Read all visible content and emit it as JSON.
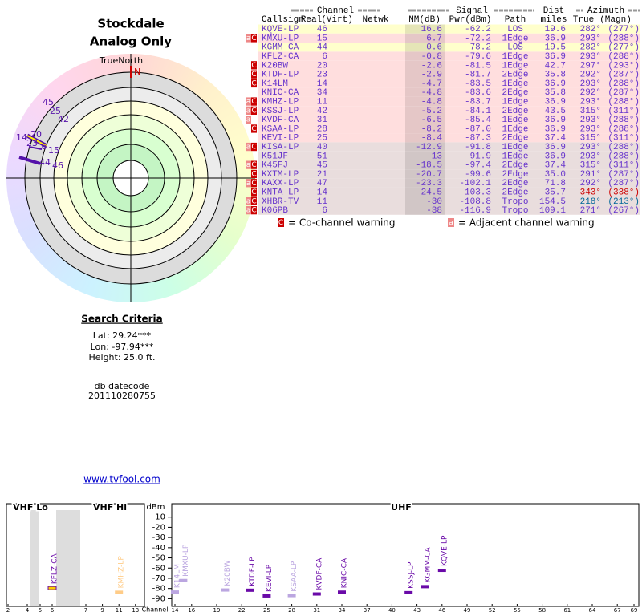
{
  "location": {
    "title": "Stockdale",
    "subtitle": "Analog Only"
  },
  "polar": {
    "north_label": "TrueNorth",
    "n": "N",
    "labels": [
      45,
      25,
      42,
      14,
      20,
      23,
      6,
      15,
      44,
      46
    ]
  },
  "table": {
    "groups": {
      "channel": "Channel",
      "signal": "Signal",
      "dist": "Dist",
      "azimuth": "Azimuth"
    },
    "columns": {
      "callsign": "Callsign",
      "real": "Real",
      "virt": "(Virt)",
      "netwk": "Netwk",
      "nm": "NM(dB)",
      "pwr": "Pwr(dBm)",
      "path": "Path",
      "miles": "miles",
      "true": "True",
      "magn": "(Magn)"
    },
    "rows": [
      {
        "callsign": "KQVE-LP",
        "real": 46,
        "nm": 16.6,
        "pwr": -62.2,
        "path": "LOS",
        "dist": 19.6,
        "true": "282°",
        "magn": "(277°)"
      },
      {
        "warn": [
          "a",
          "C"
        ],
        "callsign": "KMXU-LP",
        "real": 15,
        "nm": 6.7,
        "pwr": -72.2,
        "path": "1Edge",
        "dist": 36.9,
        "true": "293°",
        "magn": "(288°)"
      },
      {
        "callsign": "KGMM-CA",
        "real": 44,
        "nm": 0.6,
        "pwr": -78.2,
        "path": "LOS",
        "dist": 19.5,
        "true": "282°",
        "magn": "(277°)"
      },
      {
        "callsign": "KFLZ-CA",
        "real": 6,
        "nm": -0.8,
        "pwr": -79.6,
        "path": "1Edge",
        "dist": 36.9,
        "true": "293°",
        "magn": "(288°)"
      },
      {
        "warn": [
          "C"
        ],
        "callsign": "K20BW",
        "real": 20,
        "nm": -2.6,
        "pwr": -81.5,
        "path": "1Edge",
        "dist": 42.7,
        "true": "297°",
        "magn": "(293°)"
      },
      {
        "warn": [
          "C"
        ],
        "callsign": "KTDF-LP",
        "real": 23,
        "nm": -2.9,
        "pwr": -81.7,
        "path": "2Edge",
        "dist": 35.8,
        "true": "292°",
        "magn": "(287°)"
      },
      {
        "warn": [
          "C"
        ],
        "callsign": "K14LM",
        "real": 14,
        "nm": -4.7,
        "pwr": -83.5,
        "path": "1Edge",
        "dist": 36.9,
        "true": "293°",
        "magn": "(288°)"
      },
      {
        "callsign": "KNIC-CA",
        "real": 34,
        "nm": -4.8,
        "pwr": -83.6,
        "path": "2Edge",
        "dist": 35.8,
        "true": "292°",
        "magn": "(287°)"
      },
      {
        "warn": [
          "a",
          "C"
        ],
        "callsign": "KMHZ-LP",
        "real": 11,
        "nm": -4.8,
        "pwr": -83.7,
        "path": "1Edge",
        "dist": 36.9,
        "true": "293°",
        "magn": "(288°)"
      },
      {
        "warn": [
          "a",
          "C"
        ],
        "callsign": "KSSJ-LP",
        "real": 42,
        "nm": -5.2,
        "pwr": -84.1,
        "path": "2Edge",
        "dist": 43.5,
        "true": "315°",
        "magn": "(311°)"
      },
      {
        "warn": [
          "a"
        ],
        "callsign": "KVDF-CA",
        "real": 31,
        "nm": -6.5,
        "pwr": -85.4,
        "path": "1Edge",
        "dist": 36.9,
        "true": "293°",
        "magn": "(288°)"
      },
      {
        "warn": [
          "C"
        ],
        "callsign": "KSAA-LP",
        "real": 28,
        "nm": -8.2,
        "pwr": {
          "value": -87,
          "label": "-87.0"
        },
        "path": "1Edge",
        "dist": 36.9,
        "true": "293°",
        "magn": "(288°)"
      },
      {
        "callsign": "KEVI-LP",
        "real": 25,
        "nm": -8.4,
        "pwr": -87.3,
        "path": "2Edge",
        "dist": 37.4,
        "true": "315°",
        "magn": "(311°)"
      },
      {
        "warn": [
          "a",
          "C"
        ],
        "callsign": "KISA-LP",
        "real": 40,
        "nm": -12.9,
        "pwr": -91.8,
        "path": "1Edge",
        "dist": 36.9,
        "true": "293°",
        "magn": "(288°)"
      },
      {
        "callsign": "K51JF",
        "real": 51,
        "nm": -13,
        "pwr": -91.9,
        "path": "1Edge",
        "dist": 36.9,
        "true": "293°",
        "magn": "(288°)"
      },
      {
        "warn": [
          "a",
          "C"
        ],
        "callsign": "K45FJ",
        "real": 45,
        "nm": -18.5,
        "pwr": -97.4,
        "path": "2Edge",
        "dist": 37.4,
        "true": "315°",
        "magn": "(311°)"
      },
      {
        "warn": [
          "C"
        ],
        "callsign": "KXTM-LP",
        "real": 21,
        "nm": -20.7,
        "pwr": -99.6,
        "path": "2Edge",
        "dist": {
          "value": 35,
          "label": "35.0"
        },
        "true": "291°",
        "magn": "(287°)"
      },
      {
        "warn": [
          "a",
          "C"
        ],
        "callsign": "KAXX-LP",
        "real": 47,
        "nm": -23.3,
        "pwr": -102.1,
        "path": "2Edge",
        "dist": 71.8,
        "true": "292°",
        "magn": "(287°)"
      },
      {
        "warn": [
          "C"
        ],
        "callsign": "KNTA-LP",
        "real": 14,
        "nm": -24.5,
        "pwr": -103.3,
        "path": "2Edge",
        "dist": 35.7,
        "true": "343°",
        "magn": "(338°)",
        "az_color": "#cc0000"
      },
      {
        "warn": [
          "a",
          "C"
        ],
        "callsign": "XHBR-TV",
        "real": 11,
        "nm": -30,
        "pwr": -108.8,
        "path": "Tropo",
        "dist": 154.5,
        "true": "218°",
        "magn": "(213°)",
        "az_color": "#006699"
      },
      {
        "warn": [
          "a",
          "C"
        ],
        "callsign": "K06PB",
        "real": 6,
        "nm": -38,
        "pwr": -116.9,
        "path": "Tropo",
        "dist": 109.1,
        "true": "271°",
        "magn": "(267°)"
      }
    ]
  },
  "legend": [
    {
      "icon": "C",
      "text": "= Co-channel warning"
    },
    {
      "icon": "a",
      "text": "= Adjacent channel warning"
    }
  ],
  "search": {
    "title": "Search Criteria",
    "lat": "Lat: 29.24***",
    "lon": "Lon: -97.94***",
    "height": "Height: 25.0 ft."
  },
  "datecode": {
    "label": "db datecode",
    "value": "201110280755"
  },
  "link": "www.tvfool.com",
  "spectrum": {
    "bands": [
      "VHF Lo",
      "VHF Hi",
      "UHF"
    ],
    "y_label": "dBm",
    "x_label": "Channel",
    "ylim": [
      -96,
      0
    ],
    "yticks": [
      -10,
      -20,
      -30,
      -40,
      -50,
      -60,
      -70,
      -80,
      -90
    ],
    "xticks": [
      2,
      4,
      5,
      6,
      7,
      9,
      11,
      13,
      14,
      16,
      19,
      22,
      25,
      28,
      31,
      34,
      37,
      40,
      43,
      46,
      49,
      52,
      55,
      58,
      61,
      64,
      67,
      69
    ],
    "stations": [
      {
        "name": "KFLZ-CA",
        "channel": 6,
        "dbm": -79.6,
        "color": "#ffcc00"
      },
      {
        "name": "KMHZ-LP",
        "channel": 11,
        "dbm": -83.7,
        "color": "#ffcc88"
      },
      {
        "name": "K14LM",
        "channel": 14,
        "dbm": -83.5,
        "color": "#bba6e0"
      },
      {
        "name": "KMXU-LP",
        "channel": 15,
        "dbm": -72.2,
        "color": "#bba6e0"
      },
      {
        "name": "K20BW",
        "channel": 20,
        "dbm": -81.5,
        "color": "#bba6e0"
      },
      {
        "name": "KTDF-LP",
        "channel": 23,
        "dbm": -81.7,
        "color": "#6a0aa8"
      },
      {
        "name": "KEVI-LP",
        "channel": 25,
        "dbm": -87.3,
        "color": "#6a0aa8"
      },
      {
        "name": "KSAA-LP",
        "channel": 28,
        "dbm": -87,
        "color": "#bba6e0"
      },
      {
        "name": "KVDF-CA",
        "channel": 31,
        "dbm": -85.4,
        "color": "#6a0aa8"
      },
      {
        "name": "KNIC-CA",
        "channel": 34,
        "dbm": -83.6,
        "color": "#6a0aa8"
      },
      {
        "name": "KSSJ-LP",
        "channel": 42,
        "dbm": -84.1,
        "color": "#6a0aa8"
      },
      {
        "name": "KGMM-CA",
        "channel": 44,
        "dbm": -78.2,
        "color": "#6a0aa8"
      },
      {
        "name": "KQVE-LP",
        "channel": 46,
        "dbm": -62.2,
        "color": "#6a0aa8"
      }
    ]
  }
}
